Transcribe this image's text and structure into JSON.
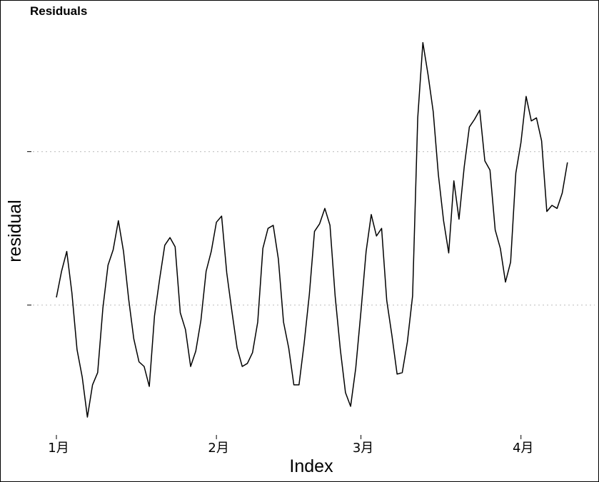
{
  "chart_data": {
    "type": "line",
    "title": "Residuals",
    "xlabel": "Index",
    "ylabel": "residual",
    "x_tick_labels": [
      "1月",
      "2月",
      "3月",
      "4月"
    ],
    "y_ticks": [
      0,
      1
    ],
    "ylim": [
      -0.73,
      1.7
    ],
    "grid": "dotted horizontal lines at y ticks",
    "legend": "none",
    "series": [
      {
        "color": "#000000",
        "values": [
          0.05,
          0.22,
          0.35,
          0.08,
          -0.29,
          -0.47,
          -0.73,
          -0.52,
          -0.44,
          -0.02,
          0.26,
          0.36,
          0.55,
          0.35,
          0.04,
          -0.22,
          -0.37,
          -0.4,
          -0.53,
          -0.07,
          0.17,
          0.39,
          0.44,
          0.38,
          -0.05,
          -0.16,
          -0.4,
          -0.3,
          -0.1,
          0.22,
          0.35,
          0.54,
          0.58,
          0.21,
          -0.04,
          -0.28,
          -0.4,
          -0.38,
          -0.31,
          -0.11,
          0.37,
          0.5,
          0.52,
          0.3,
          -0.11,
          -0.28,
          -0.52,
          -0.52,
          -0.25,
          0.07,
          0.48,
          0.53,
          0.63,
          0.52,
          0.06,
          -0.29,
          -0.57,
          -0.66,
          -0.41,
          -0.04,
          0.35,
          0.59,
          0.45,
          0.5,
          0.03,
          -0.2,
          -0.45,
          -0.44,
          -0.24,
          0.06,
          1.22,
          1.71,
          1.5,
          1.26,
          0.85,
          0.55,
          0.34,
          0.81,
          0.56,
          0.9,
          1.16,
          1.21,
          1.27,
          0.94,
          0.88,
          0.49,
          0.37,
          0.15,
          0.28,
          0.86,
          1.06,
          1.36,
          1.2,
          1.22,
          1.07,
          0.61,
          0.65,
          0.63,
          0.73,
          0.93
        ]
      }
    ]
  }
}
